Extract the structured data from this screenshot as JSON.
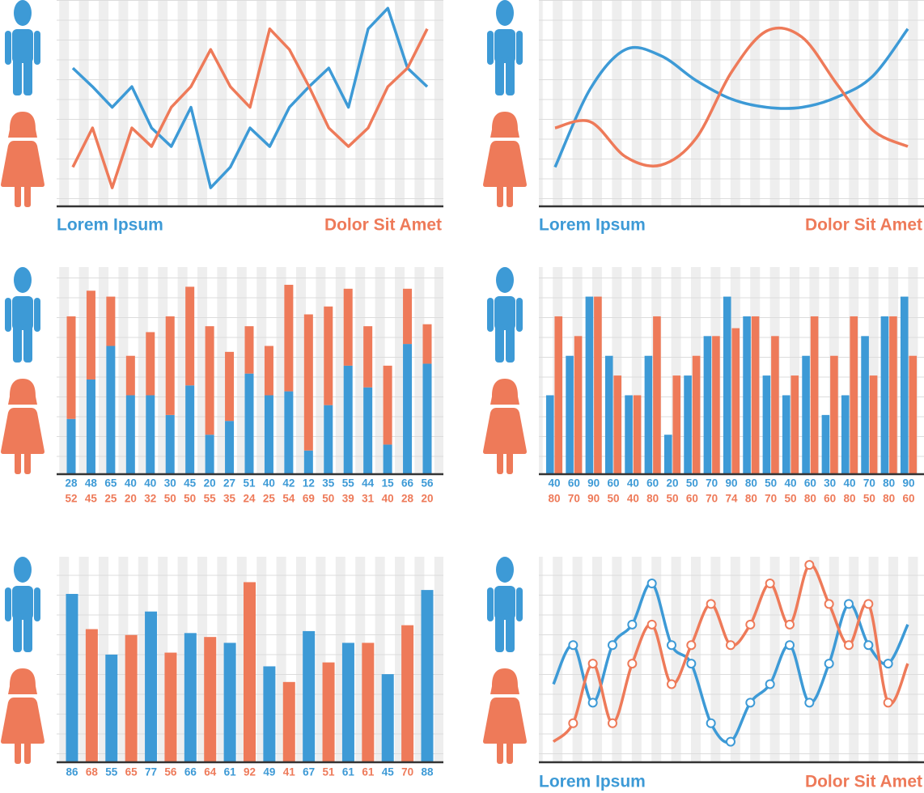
{
  "chart_data": [
    {
      "type": "line",
      "ylim": [
        0,
        100
      ],
      "series": [
        {
          "name": "Lorem Ipsum",
          "color": "#3d9ad6",
          "values": [
            67,
            58,
            48,
            58,
            38,
            29,
            48,
            9,
            19,
            38,
            29,
            48,
            58,
            67,
            48,
            86,
            96,
            67,
            58
          ]
        },
        {
          "name": "Dolor Sit Amet",
          "color": "#ee7a59",
          "values": [
            19,
            38,
            9,
            38,
            29,
            48,
            58,
            76,
            58,
            48,
            86,
            76,
            58,
            38,
            29,
            38,
            58,
            67,
            86
          ]
        }
      ]
    },
    {
      "type": "line",
      "smooth": true,
      "ylim": [
        0,
        100
      ],
      "series": [
        {
          "name": "Lorem Ipsum",
          "color": "#3d9ad6",
          "values": [
            19,
            57,
            76,
            73,
            61,
            52,
            48,
            48,
            53,
            63,
            86
          ]
        },
        {
          "name": "Dolor Sit Amet",
          "color": "#ee7a59",
          "values": [
            38,
            41,
            24,
            20,
            33,
            65,
            85,
            82,
            59,
            37,
            29
          ]
        }
      ]
    },
    {
      "type": "bar",
      "stacked": true,
      "ylim": [
        0,
        105
      ],
      "series": [
        {
          "color": "#3d9ad6",
          "values": [
            28,
            48,
            65,
            40,
            40,
            30,
            45,
            20,
            27,
            51,
            40,
            42,
            12,
            35,
            55,
            44,
            15,
            66,
            56
          ]
        },
        {
          "color": "#ee7a59",
          "values": [
            52,
            45,
            25,
            20,
            32,
            50,
            50,
            55,
            35,
            24,
            25,
            54,
            69,
            50,
            39,
            31,
            40,
            28,
            20
          ]
        }
      ]
    },
    {
      "type": "bar",
      "stacked": false,
      "ylim": [
        0,
        105
      ],
      "series": [
        {
          "color": "#3d9ad6",
          "values": [
            40,
            60,
            90,
            60,
            40,
            60,
            20,
            50,
            70,
            90,
            80,
            50,
            40,
            60,
            30,
            40,
            70,
            80,
            90
          ]
        },
        {
          "color": "#ee7a59",
          "values": [
            80,
            70,
            90,
            50,
            40,
            80,
            50,
            60,
            70,
            74,
            80,
            70,
            50,
            80,
            60,
            80,
            50,
            80,
            60
          ]
        }
      ]
    },
    {
      "type": "bar",
      "ylim": [
        0,
        105
      ],
      "values": [
        86,
        68,
        55,
        65,
        77,
        56,
        66,
        64,
        61,
        92,
        49,
        41,
        67,
        51,
        61,
        61,
        45,
        70,
        88
      ],
      "colors": [
        "#3d9ad6",
        "#ee7a59",
        "#3d9ad6",
        "#ee7a59",
        "#3d9ad6",
        "#ee7a59",
        "#3d9ad6",
        "#ee7a59",
        "#3d9ad6",
        "#ee7a59",
        "#3d9ad6",
        "#ee7a59",
        "#3d9ad6",
        "#ee7a59",
        "#3d9ad6",
        "#ee7a59",
        "#3d9ad6",
        "#ee7a59",
        "#3d9ad6"
      ]
    },
    {
      "type": "line",
      "smooth": true,
      "markers": true,
      "ylim": [
        0,
        100
      ],
      "series": [
        {
          "name": "Lorem Ipsum",
          "color": "#3d9ad6",
          "values": [
            38,
            57,
            29,
            57,
            67,
            87,
            57,
            48,
            19,
            10,
            29,
            38,
            57,
            29,
            48,
            77,
            57,
            48,
            67
          ]
        },
        {
          "name": "Dolor Sit Amet",
          "color": "#ee7a59",
          "values": [
            10,
            19,
            48,
            19,
            48,
            67,
            38,
            57,
            77,
            57,
            67,
            87,
            67,
            96,
            77,
            57,
            77,
            29,
            48
          ]
        }
      ]
    }
  ]
}
